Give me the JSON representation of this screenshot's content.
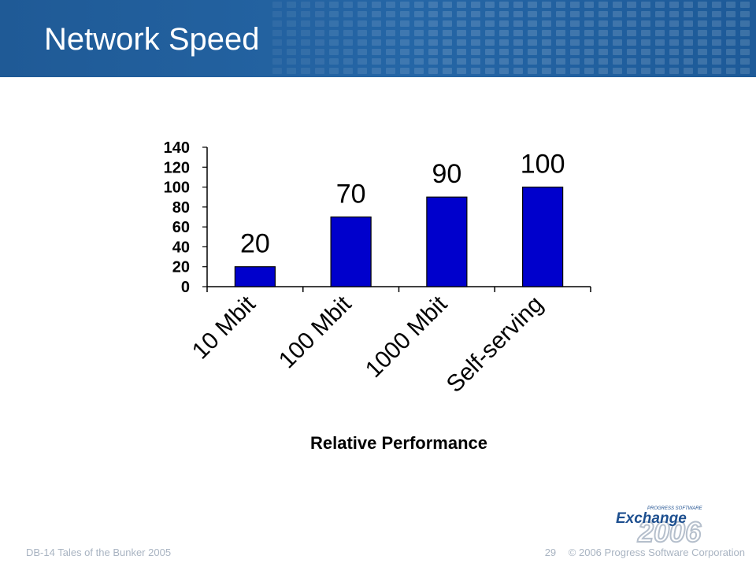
{
  "slide": {
    "title": "Network Speed",
    "footer_left": "DB-14 Tales of the Bunker 2005",
    "page_number": "29",
    "copyright": "© 2006 Progress Software Corporation",
    "logo": {
      "small_text": "PROGRESS SOFTWARE",
      "word": "Exchange",
      "year": "2006"
    },
    "colors": {
      "header": "#1f5a96",
      "bar": "#0000cc",
      "logo_blue": "#1d4f8f",
      "logo_grey": "#b5bfcc"
    }
  },
  "chart_data": {
    "type": "bar",
    "categories": [
      "10 Mbit",
      "100 Mbit",
      "1000 Mbit",
      "Self-serving"
    ],
    "values": [
      20,
      70,
      90,
      100
    ],
    "data_labels": [
      "20",
      "70",
      "90",
      "100"
    ],
    "title": "",
    "xlabel": "Relative Performance",
    "ylabel": "",
    "ylim": [
      0,
      140
    ],
    "yticks": [
      "0",
      "20",
      "40",
      "60",
      "80",
      "100",
      "120",
      "140"
    ],
    "grid": false,
    "legend": "none"
  }
}
